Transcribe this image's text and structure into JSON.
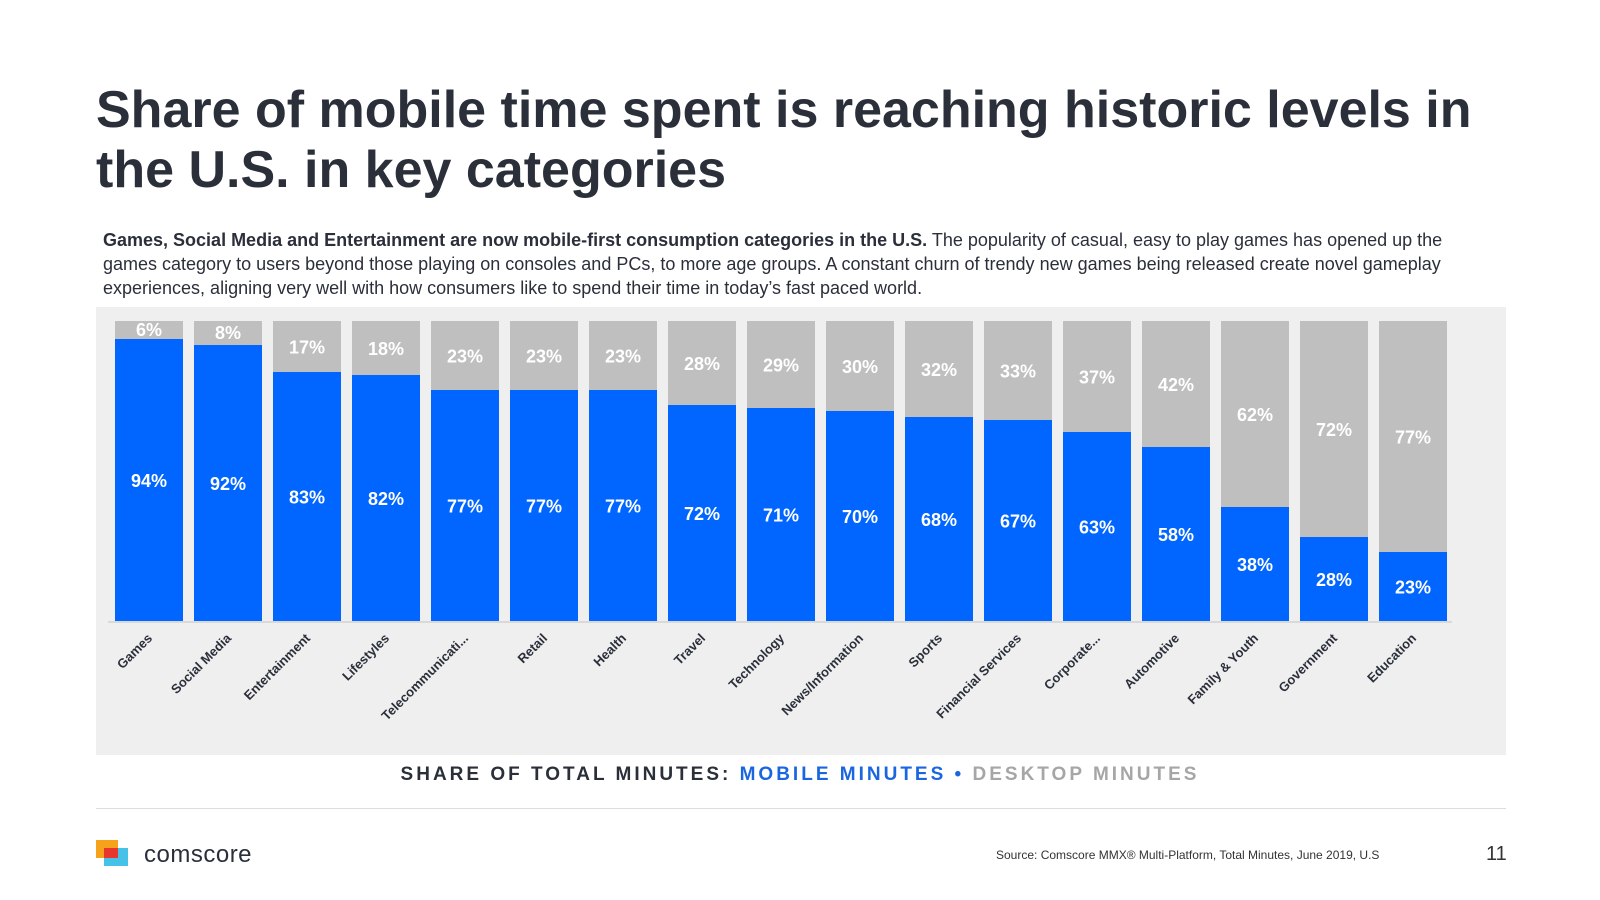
{
  "slide": {
    "title": "Share of mobile time spent is reaching historic levels in the U.S. in key categories",
    "body_bold": "Games, Social Media and Entertainment are now mobile-first consumption categories in the U.S.",
    "body_rest": " The popularity of casual, easy to play games has opened up the games category to users beyond those playing on consoles and PCs, to more age groups. A constant churn of trendy new games being released create novel gameplay experiences, aligning very well with how consumers like to spend their time in today’s fast paced world.",
    "legend": {
      "lead": "SHARE OF TOTAL MINUTES: ",
      "mobile": "MOBILE MINUTES",
      "separator": " • ",
      "desktop": "DESKTOP MINUTES"
    },
    "logo_text": "comscore",
    "source": "Source: Comscore MMX® Multi-Platform, Total Minutes, June 2019, U.S",
    "page_number": "11"
  },
  "colors": {
    "mobile": "#0066ff",
    "desktop": "#bfbfbf",
    "panel": "#efefef",
    "label": "#ffffff",
    "axis_text": "#2a2f3a"
  },
  "chart_data": {
    "type": "bar",
    "stacked": true,
    "percent": true,
    "title": "",
    "xlabel": "",
    "ylabel": "",
    "ylim": [
      0,
      100
    ],
    "grid": false,
    "legend": "bottom",
    "categories": [
      "Games",
      "Social Media",
      "Entertainment",
      "Lifestyles",
      "Telecommunicati...",
      "Retail",
      "Health",
      "Travel",
      "Technology",
      "News/Information",
      "Sports",
      "Financial Services",
      "Corporate...",
      "Automotive",
      "Family & Youth",
      "Government",
      "Education"
    ],
    "series": [
      {
        "name": "Mobile Minutes",
        "values": [
          94,
          92,
          83,
          82,
          77,
          77,
          77,
          72,
          71,
          70,
          68,
          67,
          63,
          58,
          38,
          28,
          23
        ]
      },
      {
        "name": "Desktop Minutes",
        "values": [
          6,
          8,
          17,
          18,
          23,
          23,
          23,
          28,
          29,
          30,
          32,
          33,
          37,
          42,
          62,
          72,
          77
        ]
      }
    ]
  }
}
